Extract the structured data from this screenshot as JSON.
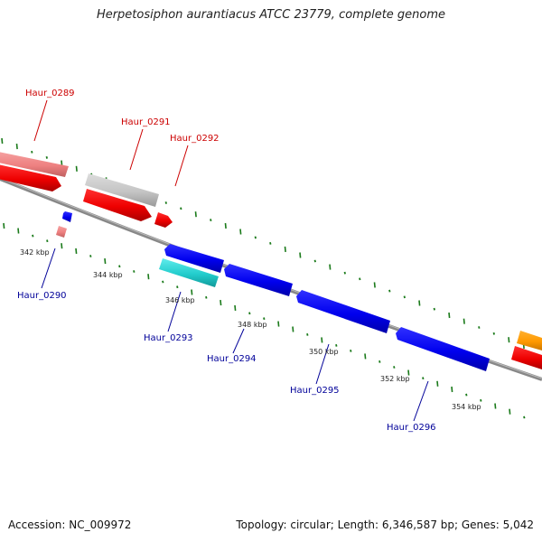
{
  "title": "Herpetosiphon aurantiacus ATCC 23779, complete genome",
  "footer": {
    "accession": "Accession: NC_009972",
    "summary": "Topology: circular; Length: 6,346,587 bp; Genes: 5,042"
  },
  "genes": [
    {
      "id": "gene-0289",
      "label": "Haur_0289",
      "strand": "forward",
      "color": "#cc0000"
    },
    {
      "id": "gene-0290",
      "label": "Haur_0290",
      "strand": "reverse",
      "color": "#000099"
    },
    {
      "id": "gene-0291",
      "label": "Haur_0291",
      "strand": "forward",
      "color": "#cc0000"
    },
    {
      "id": "gene-0292",
      "label": "Haur_0292",
      "strand": "forward",
      "color": "#cc0000"
    },
    {
      "id": "gene-0293",
      "label": "Haur_0293",
      "strand": "reverse",
      "color": "#000099"
    },
    {
      "id": "gene-0294",
      "label": "Haur_0294",
      "strand": "reverse",
      "color": "#000099"
    },
    {
      "id": "gene-0295",
      "label": "Haur_0295",
      "strand": "reverse",
      "color": "#000099"
    },
    {
      "id": "gene-0296",
      "label": "Haur_0296",
      "strand": "reverse",
      "color": "#000099"
    }
  ],
  "ticks": [
    "342 kbp",
    "344 kbp",
    "346 kbp",
    "348 kbp",
    "350 kbp",
    "352 kbp",
    "354 kbp"
  ],
  "colors": {
    "forward_label": "#cc0000",
    "reverse_label": "#000099",
    "backbone": "#777777",
    "gc_marks": "#1a7a1a"
  }
}
